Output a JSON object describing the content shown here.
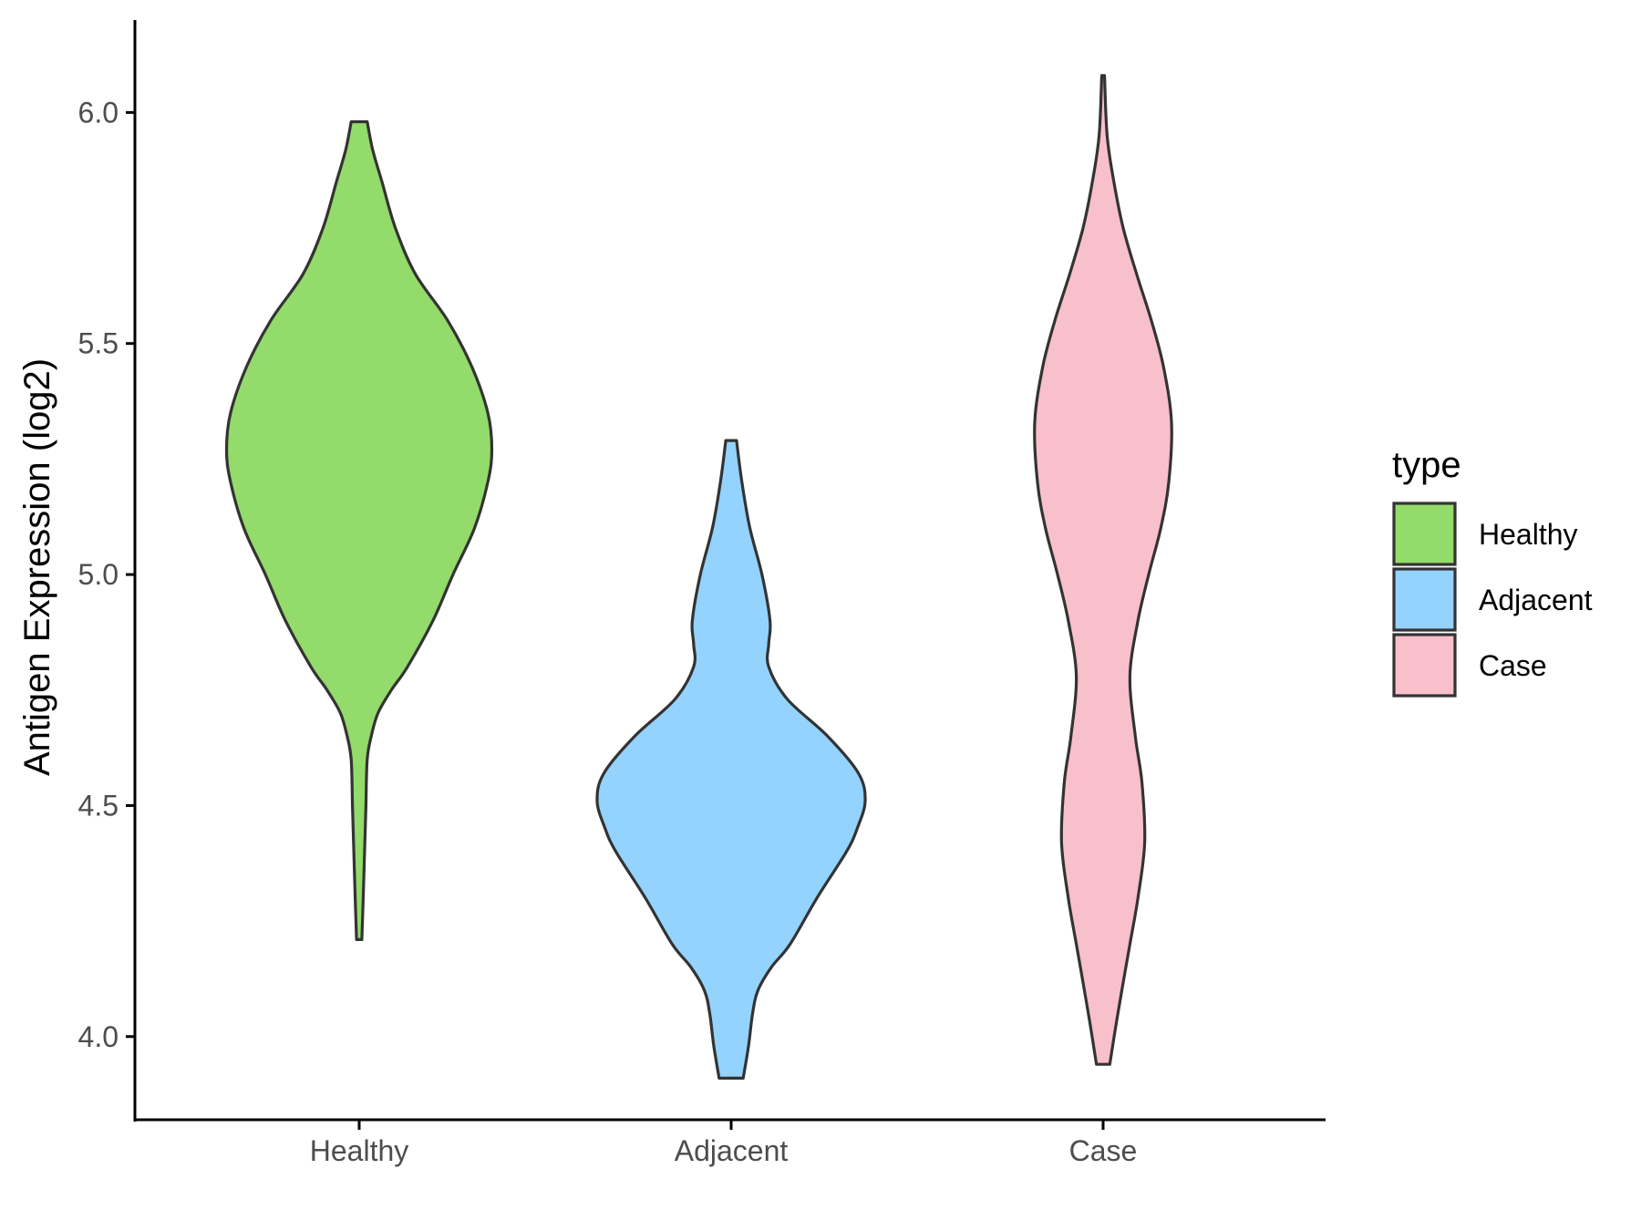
{
  "chart_data": {
    "type": "violin",
    "ylabel": "Antigen Expression (log2)",
    "xlabel": "",
    "ylim": [
      3.82,
      6.2
    ],
    "yticks": [
      4.0,
      4.5,
      5.0,
      5.5,
      6.0
    ],
    "ytick_labels": [
      "4.0",
      "4.5",
      "5.0",
      "5.5",
      "6.0"
    ],
    "categories": [
      "Healthy",
      "Adjacent",
      "Case"
    ],
    "grid": false,
    "legend": {
      "title": "type",
      "position": "right",
      "entries": [
        "Healthy",
        "Adjacent",
        "Case"
      ]
    },
    "colors": {
      "Healthy": "#93DB6A",
      "Adjacent": "#93D3FE",
      "Case": "#F8C0CB",
      "outline": "#333333"
    },
    "series": [
      {
        "name": "Healthy",
        "min": 4.21,
        "max": 5.98,
        "density": [
          [
            4.21,
            0.02
          ],
          [
            4.3,
            0.03
          ],
          [
            4.4,
            0.04
          ],
          [
            4.5,
            0.05
          ],
          [
            4.6,
            0.06
          ],
          [
            4.65,
            0.09
          ],
          [
            4.7,
            0.14
          ],
          [
            4.75,
            0.24
          ],
          [
            4.8,
            0.36
          ],
          [
            4.9,
            0.55
          ],
          [
            5.0,
            0.7
          ],
          [
            5.1,
            0.86
          ],
          [
            5.2,
            0.96
          ],
          [
            5.27,
            0.99
          ],
          [
            5.35,
            0.96
          ],
          [
            5.45,
            0.84
          ],
          [
            5.55,
            0.66
          ],
          [
            5.65,
            0.42
          ],
          [
            5.75,
            0.27
          ],
          [
            5.85,
            0.17
          ],
          [
            5.92,
            0.1
          ],
          [
            5.98,
            0.06
          ]
        ]
      },
      {
        "name": "Adjacent",
        "min": 3.91,
        "max": 5.29,
        "density": [
          [
            3.91,
            0.09
          ],
          [
            3.98,
            0.13
          ],
          [
            4.05,
            0.16
          ],
          [
            4.1,
            0.2
          ],
          [
            4.15,
            0.3
          ],
          [
            4.2,
            0.44
          ],
          [
            4.3,
            0.64
          ],
          [
            4.4,
            0.86
          ],
          [
            4.45,
            0.94
          ],
          [
            4.51,
            1.0
          ],
          [
            4.57,
            0.95
          ],
          [
            4.65,
            0.72
          ],
          [
            4.73,
            0.42
          ],
          [
            4.8,
            0.28
          ],
          [
            4.85,
            0.28
          ],
          [
            4.9,
            0.29
          ],
          [
            5.0,
            0.23
          ],
          [
            5.1,
            0.14
          ],
          [
            5.2,
            0.08
          ],
          [
            5.29,
            0.04
          ]
        ]
      },
      {
        "name": "Case",
        "min": 3.94,
        "max": 6.08,
        "density": [
          [
            3.94,
            0.05
          ],
          [
            4.05,
            0.11
          ],
          [
            4.2,
            0.2
          ],
          [
            4.3,
            0.26
          ],
          [
            4.42,
            0.31
          ],
          [
            4.55,
            0.29
          ],
          [
            4.65,
            0.24
          ],
          [
            4.78,
            0.2
          ],
          [
            4.9,
            0.26
          ],
          [
            5.0,
            0.34
          ],
          [
            5.1,
            0.43
          ],
          [
            5.2,
            0.49
          ],
          [
            5.33,
            0.51
          ],
          [
            5.45,
            0.45
          ],
          [
            5.55,
            0.36
          ],
          [
            5.65,
            0.25
          ],
          [
            5.75,
            0.15
          ],
          [
            5.85,
            0.08
          ],
          [
            5.95,
            0.03
          ],
          [
            6.08,
            0.01
          ]
        ]
      }
    ]
  }
}
